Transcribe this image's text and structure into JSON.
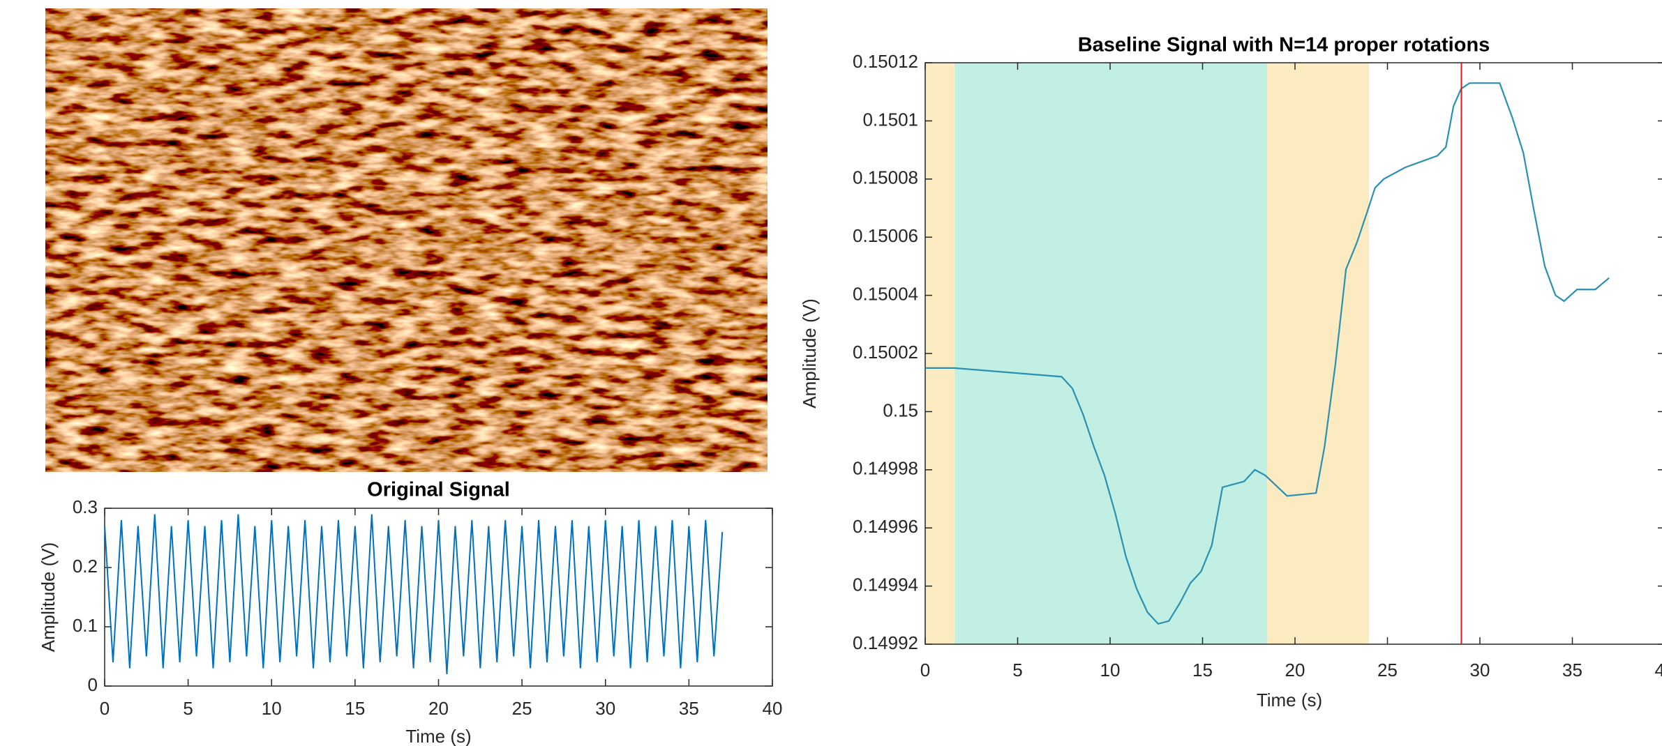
{
  "chart_data": [
    {
      "type": "line",
      "title": "Original Signal",
      "xlabel": "Time (s)",
      "ylabel": "Amplitude (V)",
      "color": "#0072bd",
      "xlim": [
        0,
        40
      ],
      "xticks": [
        0,
        5,
        10,
        15,
        20,
        25,
        30,
        35,
        40
      ],
      "ylim": [
        0,
        0.3
      ],
      "yticks": [
        0,
        0.1,
        0.2,
        0.3
      ],
      "x": [
        0,
        0.5,
        1,
        1.5,
        2,
        2.5,
        3,
        3.5,
        4,
        4.5,
        5,
        5.5,
        6,
        6.5,
        7,
        7.5,
        8,
        8.5,
        9,
        9.5,
        10,
        10.5,
        11,
        11.5,
        12,
        12.5,
        13,
        13.5,
        14,
        14.5,
        15,
        15.5,
        16,
        16.5,
        17,
        17.5,
        18,
        18.5,
        19,
        19.5,
        20,
        20.5,
        21,
        21.5,
        22,
        22.5,
        23,
        23.5,
        24,
        24.5,
        25,
        25.5,
        26,
        26.5,
        27,
        27.5,
        28,
        28.5,
        29,
        29.5,
        30,
        30.5,
        31,
        31.5,
        32,
        32.5,
        33,
        33.5,
        34,
        34.5,
        35,
        35.5,
        36,
        36.5,
        37
      ],
      "values": [
        0.27,
        0.04,
        0.28,
        0.03,
        0.27,
        0.05,
        0.29,
        0.03,
        0.27,
        0.04,
        0.28,
        0.05,
        0.27,
        0.03,
        0.28,
        0.04,
        0.29,
        0.05,
        0.27,
        0.03,
        0.28,
        0.04,
        0.27,
        0.05,
        0.28,
        0.03,
        0.27,
        0.04,
        0.28,
        0.05,
        0.27,
        0.03,
        0.29,
        0.04,
        0.27,
        0.05,
        0.28,
        0.03,
        0.27,
        0.04,
        0.28,
        0.02,
        0.27,
        0.05,
        0.28,
        0.03,
        0.27,
        0.04,
        0.28,
        0.05,
        0.27,
        0.03,
        0.28,
        0.04,
        0.27,
        0.05,
        0.28,
        0.03,
        0.27,
        0.04,
        0.28,
        0.05,
        0.27,
        0.03,
        0.28,
        0.04,
        0.27,
        0.05,
        0.28,
        0.03,
        0.27,
        0.04,
        0.28,
        0.05,
        0.26
      ]
    },
    {
      "type": "line",
      "title": "Baseline Signal with N=14 proper rotations",
      "xlabel": "Time (s)",
      "ylabel": "Amplitude (V)",
      "color": "#2a8fb0",
      "xlim": [
        0,
        40
      ],
      "xticks": [
        0,
        5,
        10,
        15,
        20,
        25,
        30,
        35,
        40
      ],
      "ylim": [
        0.14992,
        0.15012
      ],
      "yticks": [
        0.14992,
        0.14994,
        0.14996,
        0.14998,
        0.15,
        0.15002,
        0.15004,
        0.15006,
        0.15008,
        0.1501,
        0.15012
      ],
      "regions": [
        {
          "start": 0,
          "end": 1.6,
          "color": "#fcebc0"
        },
        {
          "start": 1.6,
          "end": 18.5,
          "color": "#c1efe4"
        },
        {
          "start": 18.5,
          "end": 24,
          "color": "#fcebc0"
        }
      ],
      "vline": {
        "x": 29,
        "color": "#e8141c"
      },
      "x": [
        0,
        1.57,
        7.38,
        7.96,
        8.54,
        9.12,
        9.7,
        10.28,
        10.86,
        11.44,
        12.02,
        12.6,
        13.18,
        13.76,
        14.34,
        14.92,
        15.5,
        16.08,
        17.25,
        17.83,
        18.41,
        19.57,
        21.14,
        21.6,
        22.18,
        22.76,
        23.34,
        23.92,
        24.33,
        24.8,
        25.96,
        27.7,
        28.16,
        28.57,
        28.98,
        29.44,
        31.07,
        31.76,
        32.35,
        32.93,
        33.51,
        34.09,
        34.55,
        35.25,
        36.24,
        36.99
      ],
      "values": [
        0.150015,
        0.150015,
        0.150012,
        0.150008,
        0.149999,
        0.149988,
        0.149978,
        0.149965,
        0.14995,
        0.149939,
        0.149931,
        0.149927,
        0.149928,
        0.149934,
        0.149941,
        0.149945,
        0.149954,
        0.149974,
        0.149976,
        0.14998,
        0.149978,
        0.149971,
        0.149972,
        0.149988,
        0.150016,
        0.150049,
        0.150058,
        0.150069,
        0.150077,
        0.15008,
        0.150084,
        0.150088,
        0.150091,
        0.150105,
        0.150111,
        0.150113,
        0.150113,
        0.150101,
        0.150089,
        0.150069,
        0.15005,
        0.15004,
        0.150038,
        0.150042,
        0.150042,
        0.150046
      ]
    }
  ]
}
